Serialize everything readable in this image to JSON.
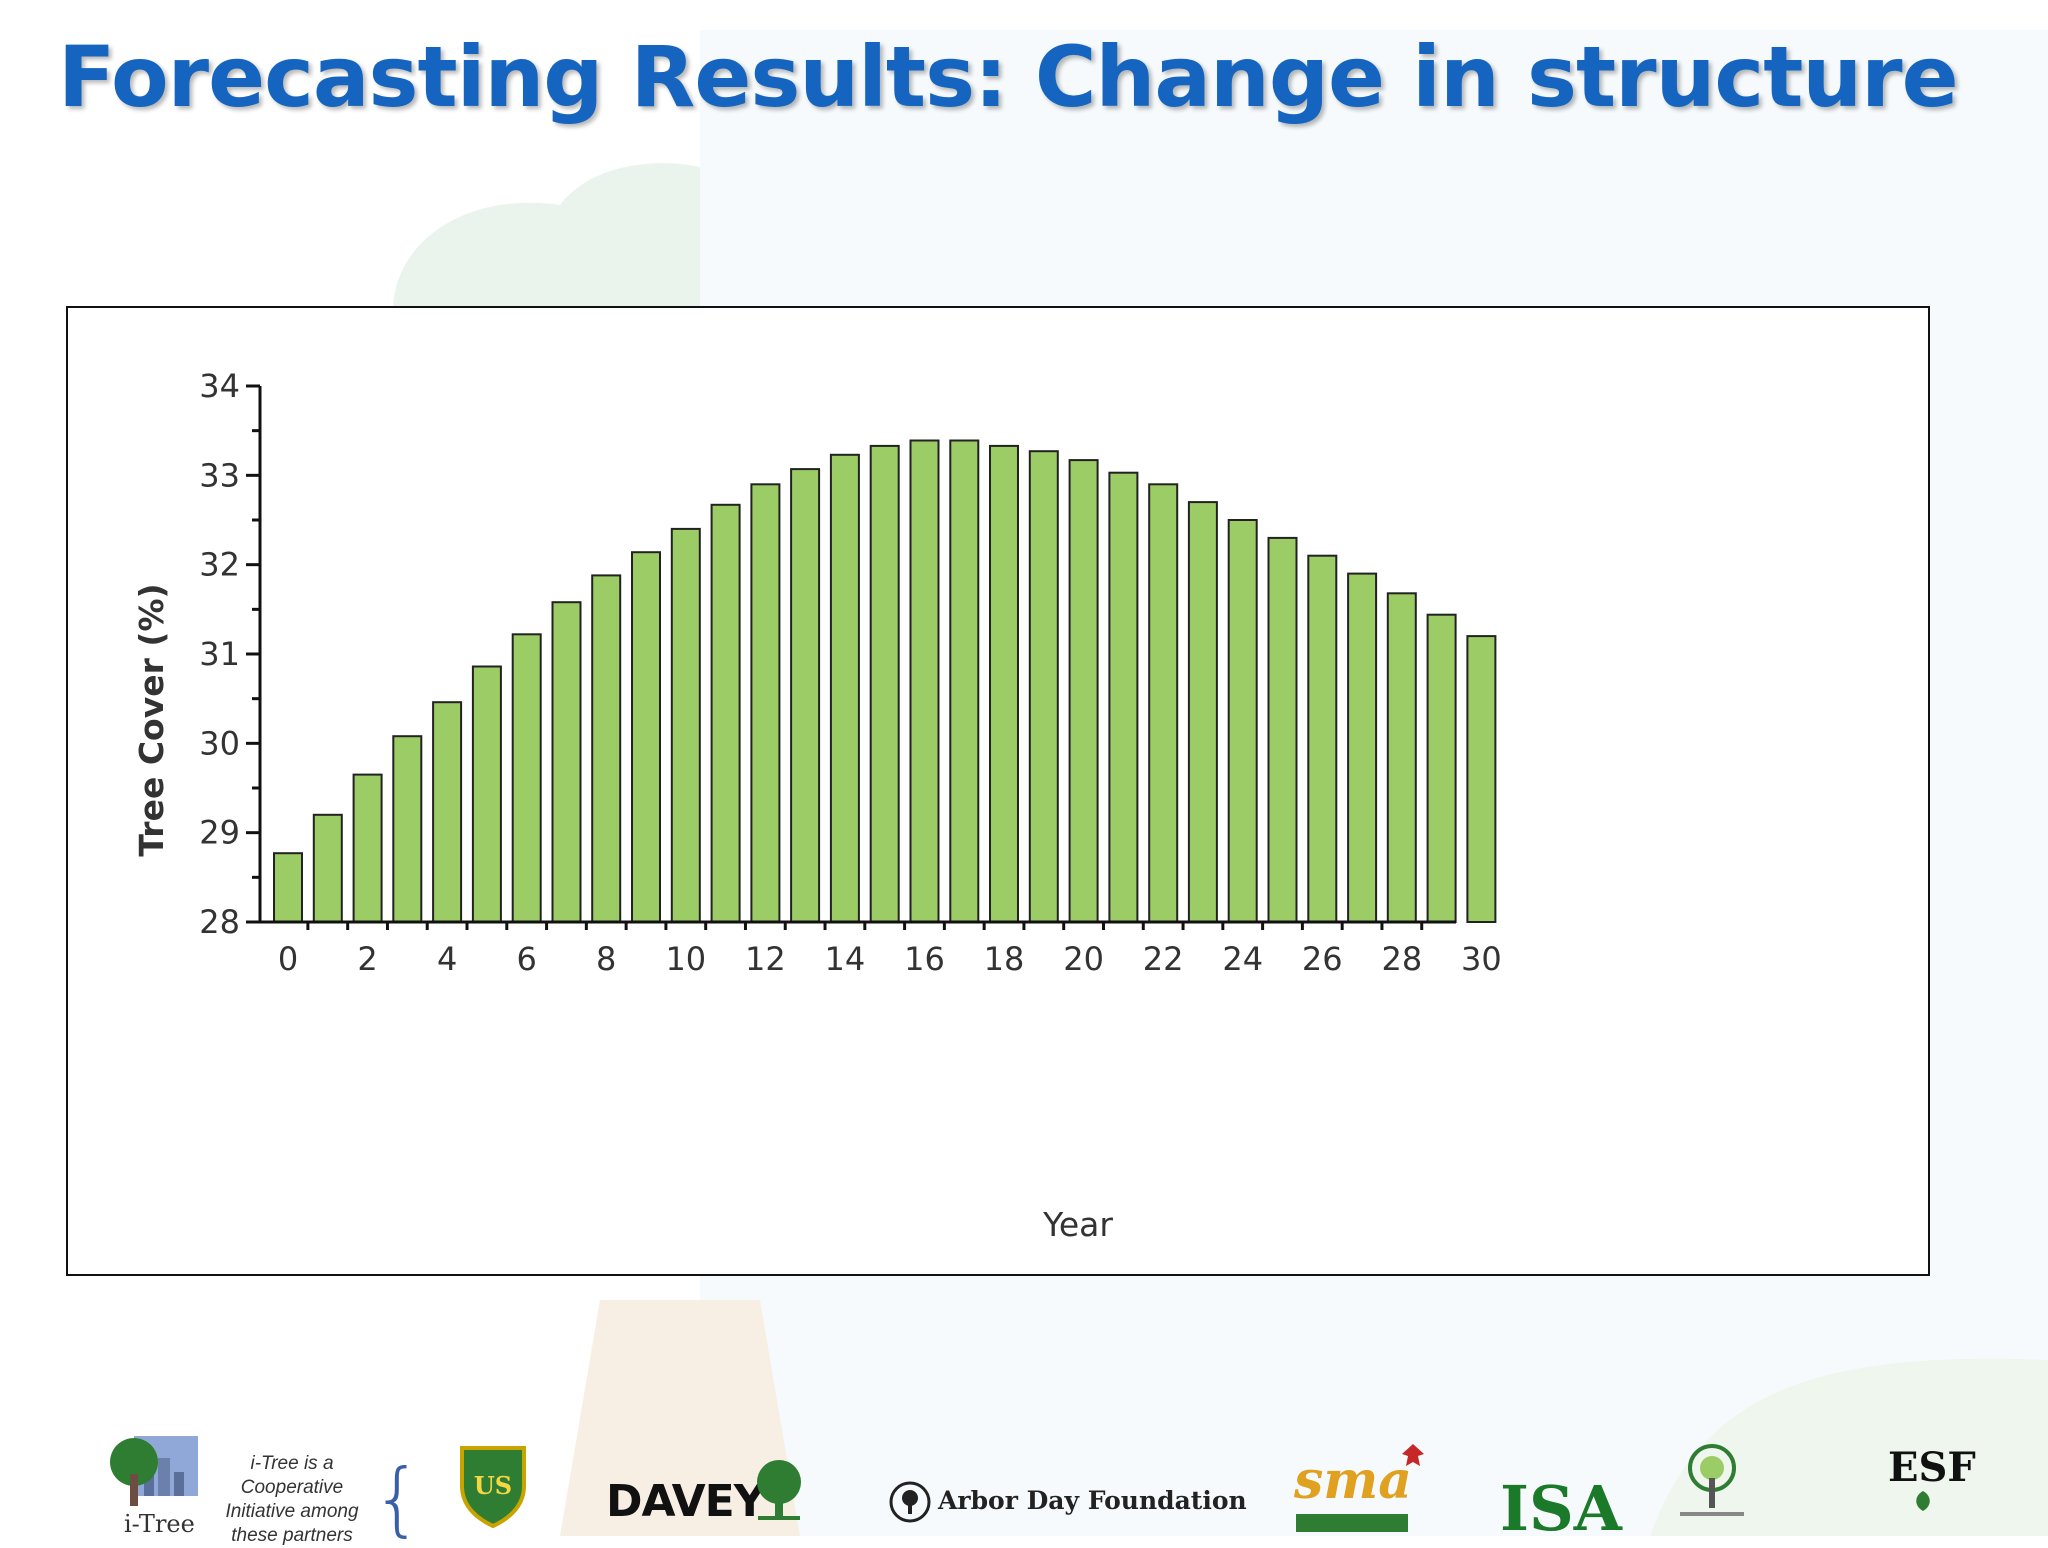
{
  "slide": {
    "title": "Forecasting Results: Change in structure"
  },
  "chart_data": {
    "type": "bar",
    "xlabel": "Year",
    "ylabel": "Tree Cover (%)",
    "ylim": [
      28,
      34
    ],
    "yticks": [
      28,
      29,
      30,
      31,
      32,
      33,
      34
    ],
    "xticks": [
      0,
      2,
      4,
      6,
      8,
      10,
      12,
      14,
      16,
      18,
      20,
      22,
      24,
      26,
      28,
      30
    ],
    "grid": false,
    "bar_color": "#9ccc65",
    "x": [
      0,
      1,
      2,
      3,
      4,
      5,
      6,
      7,
      8,
      9,
      10,
      11,
      12,
      13,
      14,
      15,
      16,
      17,
      18,
      19,
      20,
      21,
      22,
      23,
      24,
      25,
      26,
      27,
      28,
      29,
      30
    ],
    "values": [
      28.77,
      29.2,
      29.65,
      30.08,
      30.46,
      30.86,
      31.22,
      31.58,
      31.88,
      32.14,
      32.4,
      32.67,
      32.9,
      33.07,
      33.23,
      33.33,
      33.39,
      33.39,
      33.33,
      33.27,
      33.17,
      33.03,
      32.9,
      32.7,
      32.5,
      32.3,
      32.1,
      31.9,
      31.68,
      31.44,
      31.2
    ]
  },
  "footer": {
    "cooperative_text": "i-Tree is a Cooperative Initiative among these partners",
    "itree_label": "i-Tree",
    "partners": [
      "DAVEY",
      "Arbor Day Foundation",
      "sma",
      "ISA",
      "ESF"
    ]
  }
}
